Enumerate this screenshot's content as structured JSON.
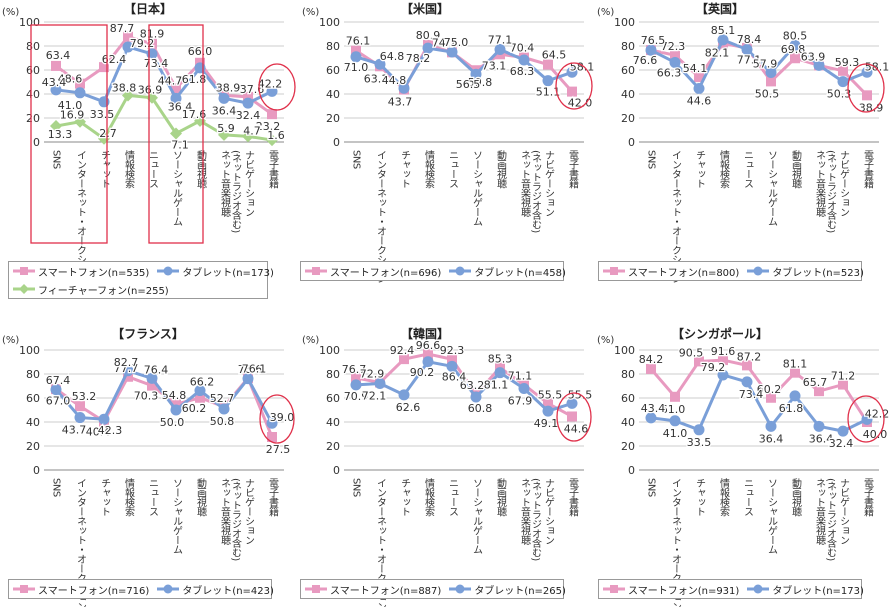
{
  "unit_label": "(%)",
  "colors": {
    "smartphone": "#e89ac0",
    "tablet": "#7a9fd8",
    "feature": "#a9d48a",
    "highlight": "#e0304a",
    "grid": "#cccccc",
    "axis": "#888888"
  },
  "chart_data": [
    {
      "type": "line",
      "title": "【日本】",
      "ylim": [
        0,
        100
      ],
      "yticks": [
        "0",
        "20",
        "40",
        "60",
        "80",
        "100"
      ],
      "categories": [
        "SNS",
        "インターネット・オークション",
        "チャット",
        "情報検索",
        "ニュース",
        "ソーシャルゲーム",
        "動画視聴",
        "ネット音楽視聴(ネットラジオ含む)",
        "ナビゲーション",
        "電子書籍"
      ],
      "series": [
        {
          "name": "スマートフォン(n=535)",
          "values": [
            63.4,
            48.6,
            62.4,
            87.7,
            81.9,
            44.7,
            66.0,
            38.9,
            37.6,
            23.2
          ]
        },
        {
          "name": "タブレット(n=173)",
          "values": [
            43.4,
            41.0,
            33.5,
            79.2,
            73.4,
            36.4,
            61.8,
            36.4,
            32.4,
            42.2
          ]
        },
        {
          "name": "フィーチャーフォン(n=255)",
          "values": [
            13.3,
            16.9,
            2.7,
            38.8,
            36.9,
            7.1,
            17.6,
            5.9,
            4.7,
            1.6
          ]
        }
      ]
    },
    {
      "type": "line",
      "title": "【米国】",
      "ylim": [
        0,
        100
      ],
      "yticks": [
        "0",
        "20",
        "40",
        "60",
        "80",
        "100"
      ],
      "categories": [
        "SNS",
        "インターネット・オークション",
        "チャット",
        "情報検索",
        "ニュース",
        "ソーシャルゲーム",
        "動画視聴",
        "ネット音楽視聴(ネットラジオ含む)",
        "ナビゲーション",
        "電子書籍"
      ],
      "series": [
        {
          "name": "スマートフォン(n=696)",
          "values": [
            76.1,
            63.1,
            43.7,
            80.9,
            74.7,
            59.8,
            73.1,
            70.4,
            64.5,
            42.0
          ]
        },
        {
          "name": "タブレット(n=458)",
          "values": [
            71.0,
            64.8,
            44.8,
            78.2,
            75.0,
            56.5,
            77.1,
            68.3,
            51.1,
            58.1
          ]
        }
      ]
    },
    {
      "type": "line",
      "title": "【英国】",
      "ylim": [
        0,
        100
      ],
      "yticks": [
        "0",
        "20",
        "40",
        "60",
        "80",
        "100"
      ],
      "categories": [
        "SNS",
        "インターネット・オークション",
        "チャット",
        "情報検索",
        "ニュース",
        "ソーシャルゲーム",
        "動画視聴",
        "ネット音楽視聴(ネットラジオ含む)",
        "ナビゲーション",
        "電子書籍"
      ],
      "series": [
        {
          "name": "スマートフォン(n=800)",
          "values": [
            76.6,
            72.3,
            54.1,
            82.1,
            78.4,
            50.5,
            69.8,
            63.8,
            59.3,
            38.9
          ]
        },
        {
          "name": "タブレット(n=523)",
          "values": [
            76.5,
            66.3,
            44.6,
            85.1,
            77.1,
            57.9,
            80.5,
            63.9,
            50.3,
            58.1
          ]
        }
      ]
    },
    {
      "type": "line",
      "title": "【フランス】",
      "ylim": [
        0,
        100
      ],
      "yticks": [
        "0",
        "20",
        "40",
        "60",
        "80",
        "100"
      ],
      "categories": [
        "SNS",
        "インターネット・オークション",
        "チャット",
        "情報検索",
        "ニュース",
        "ソーシャルゲーム",
        "動画視聴",
        "ネット音楽視聴(ネットラジオ含む)",
        "ナビゲーション",
        "電子書籍"
      ],
      "series": [
        {
          "name": "スマートフォン(n=716)",
          "values": [
            67.4,
            53.2,
            40.4,
            77.7,
            70.3,
            54.8,
            60.2,
            52.7,
            76.6,
            27.5
          ]
        },
        {
          "name": "タブレット(n=423)",
          "values": [
            67.0,
            43.7,
            42.3,
            82.7,
            76.4,
            50.0,
            66.2,
            50.8,
            76.1,
            39.0
          ]
        }
      ]
    },
    {
      "type": "line",
      "title": "【韓国】",
      "ylim": [
        0,
        100
      ],
      "yticks": [
        "0",
        "20",
        "40",
        "60",
        "80",
        "100"
      ],
      "categories": [
        "SNS",
        "インターネット・オークション",
        "チャット",
        "情報検索",
        "ニュース",
        "ソーシャルゲーム",
        "動画視聴",
        "ネット音楽視聴(ネットラジオ含む)",
        "ナビゲーション",
        "電子書籍"
      ],
      "series": [
        {
          "name": "スマートフォン(n=887)",
          "values": [
            76.7,
            72.9,
            92.4,
            96.6,
            92.3,
            63.2,
            85.3,
            71.1,
            55.5,
            44.6
          ]
        },
        {
          "name": "タブレット(n=265)",
          "values": [
            70.9,
            72.1,
            62.6,
            90.2,
            86.4,
            60.8,
            81.1,
            67.9,
            49.1,
            55.5
          ]
        }
      ]
    },
    {
      "type": "line",
      "title": "【シンガポール】",
      "ylim": [
        0,
        100
      ],
      "yticks": [
        "0",
        "20",
        "40",
        "60",
        "80",
        "100"
      ],
      "categories": [
        "SNS",
        "インターネット・オークション",
        "チャット",
        "情報検索",
        "ニュース",
        "ソーシャルゲーム",
        "動画視聴",
        "ネット音楽視聴(ネットラジオ含む)",
        "ナビゲーション",
        "電子書籍"
      ],
      "series": [
        {
          "name": "スマートフォン(n=931)",
          "values": [
            84.2,
            61.0,
            90.5,
            91.6,
            87.2,
            60.2,
            81.1,
            65.7,
            71.2,
            40.0
          ]
        },
        {
          "name": "タブレット(n=173)",
          "values": [
            43.4,
            41.0,
            33.5,
            79.2,
            73.4,
            36.4,
            61.8,
            36.4,
            32.4,
            42.2
          ]
        }
      ]
    }
  ]
}
